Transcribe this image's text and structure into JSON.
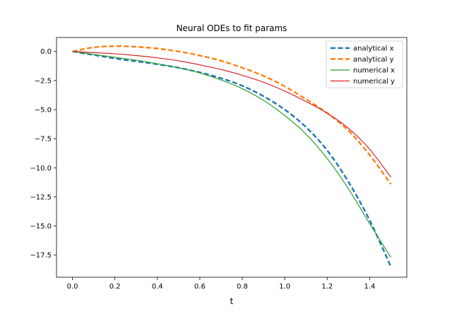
{
  "chart_data": {
    "type": "line",
    "title": "Neural ODEs to fit params",
    "xlabel": "t",
    "ylabel": "",
    "xlim": [
      -0.075,
      1.575
    ],
    "ylim": [
      -19.4,
      1.2
    ],
    "xticks": [
      0.0,
      0.2,
      0.4,
      0.6,
      0.8,
      1.0,
      1.2,
      1.4
    ],
    "xtick_labels": [
      "0.0",
      "0.2",
      "0.4",
      "0.6",
      "0.8",
      "1.0",
      "1.2",
      "1.4"
    ],
    "yticks": [
      0.0,
      -2.5,
      -5.0,
      -7.5,
      -10.0,
      -12.5,
      -15.0,
      -17.5
    ],
    "ytick_labels": [
      "0.0",
      "−2.5",
      "−5.0",
      "−7.5",
      "−10.0",
      "−12.5",
      "−15.0",
      "−17.5"
    ],
    "grid": false,
    "legend_position": "top-right",
    "x": [
      0.0,
      0.1,
      0.2,
      0.3,
      0.4,
      0.5,
      0.6,
      0.7,
      0.8,
      0.9,
      1.0,
      1.1,
      1.2,
      1.3,
      1.4,
      1.5
    ],
    "series": [
      {
        "name": "analytical x",
        "style": "dashed",
        "color": "#1f77b4",
        "values": [
          0.0,
          -0.3,
          -0.6,
          -0.85,
          -1.1,
          -1.4,
          -1.8,
          -2.3,
          -2.95,
          -3.85,
          -5.0,
          -6.5,
          -8.5,
          -11.2,
          -14.5,
          -18.5
        ]
      },
      {
        "name": "analytical y",
        "style": "dashed",
        "color": "#ff7f0e",
        "values": [
          0.0,
          0.35,
          0.45,
          0.4,
          0.25,
          0.0,
          -0.35,
          -0.8,
          -1.4,
          -2.1,
          -3.0,
          -4.1,
          -5.3,
          -6.8,
          -8.9,
          -11.4
        ]
      },
      {
        "name": "numerical x",
        "style": "solid",
        "color": "#2ca02c",
        "values": [
          0.0,
          -0.25,
          -0.5,
          -0.75,
          -1.05,
          -1.4,
          -1.85,
          -2.45,
          -3.2,
          -4.2,
          -5.5,
          -7.1,
          -9.2,
          -11.8,
          -14.8,
          -17.7
        ]
      },
      {
        "name": "numerical y",
        "style": "solid",
        "color": "#d62728",
        "values": [
          0.0,
          -0.1,
          -0.2,
          -0.35,
          -0.55,
          -0.8,
          -1.15,
          -1.55,
          -2.05,
          -2.65,
          -3.4,
          -4.3,
          -5.3,
          -6.6,
          -8.4,
          -10.8
        ]
      }
    ]
  }
}
